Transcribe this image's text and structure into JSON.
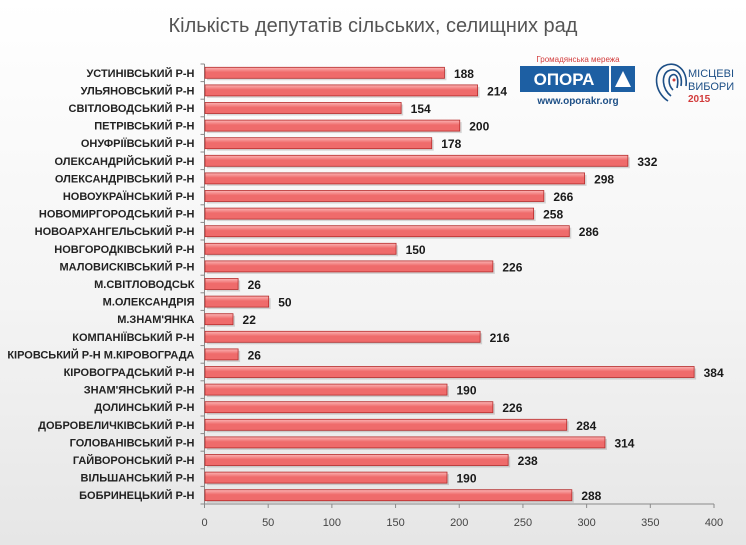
{
  "logos": {
    "opora": {
      "subtitle": "Громадянська мережа",
      "name": "ОПОРА",
      "url": "www.oporakr.org"
    },
    "elections": {
      "line1": "МІСЦЕВІ",
      "line2": "ВИБОРИ",
      "year": "2015"
    }
  },
  "colors": {
    "bar_fill": "#ef6b6b",
    "bar_highlight": "#fbb4b4",
    "bar_stroke": "#b52b2b",
    "opora_blue": "#1d5fa3",
    "accent_red": "#d23b3b"
  },
  "chart_data": {
    "type": "bar",
    "orientation": "horizontal",
    "title": "Кількість депутатів сільських, селищних рад",
    "categories": [
      "УСТИНІВСЬКИЙ Р-Н",
      "УЛЬЯНОВСЬКИЙ Р-Н",
      "СВІТЛОВОДСЬКИЙ Р-Н",
      "ПЕТРІВСЬКИЙ Р-Н",
      "ОНУФРІЇВСЬКИЙ Р-Н",
      "ОЛЕКСАНДРІЙСЬКИЙ Р-Н",
      "ОЛЕКСАНДРІВСЬКИЙ Р-Н",
      "НОВОУКРАЇНСЬКИЙ Р-Н",
      "НОВОМИРГОРОДСЬКИЙ Р-Н",
      "НОВОАРХАНГЕЛЬСЬКИЙ Р-Н",
      "НОВГОРОДКІВСЬКИЙ Р-Н",
      "МАЛОВИСКІВСЬКИЙ Р-Н",
      "М.СВІТЛОВОДСЬК",
      "М.ОЛЕКСАНДРІЯ",
      "М.ЗНАМ'ЯНКА",
      "КОМПАНІЇВСЬКИЙ Р-Н",
      "КІРОВСЬКИЙ Р-Н М.КІРОВОГРАДА",
      "КІРОВОГРАДСЬКИЙ Р-Н",
      "ЗНАМ'ЯНСЬКИЙ Р-Н",
      "ДОЛИНСЬКИЙ Р-Н",
      "ДОБРОВЕЛИЧКІВСЬКИЙ Р-Н",
      "ГОЛОВАНІВСЬКИЙ Р-Н",
      "ГАЙВОРОНСЬКИЙ Р-Н",
      "ВІЛЬШАНСЬКИЙ Р-Н",
      "БОБРИНЕЦЬКИЙ Р-Н"
    ],
    "values": [
      188,
      214,
      154,
      200,
      178,
      332,
      298,
      266,
      258,
      286,
      150,
      226,
      26,
      50,
      22,
      216,
      26,
      384,
      190,
      226,
      284,
      314,
      238,
      190,
      288
    ],
    "xlim": [
      0,
      400
    ],
    "xticks": [
      0,
      50,
      100,
      150,
      200,
      250,
      300,
      350,
      400
    ],
    "xlabel": "",
    "ylabel": "",
    "data_labels": true,
    "grid": false,
    "legend": "none"
  }
}
